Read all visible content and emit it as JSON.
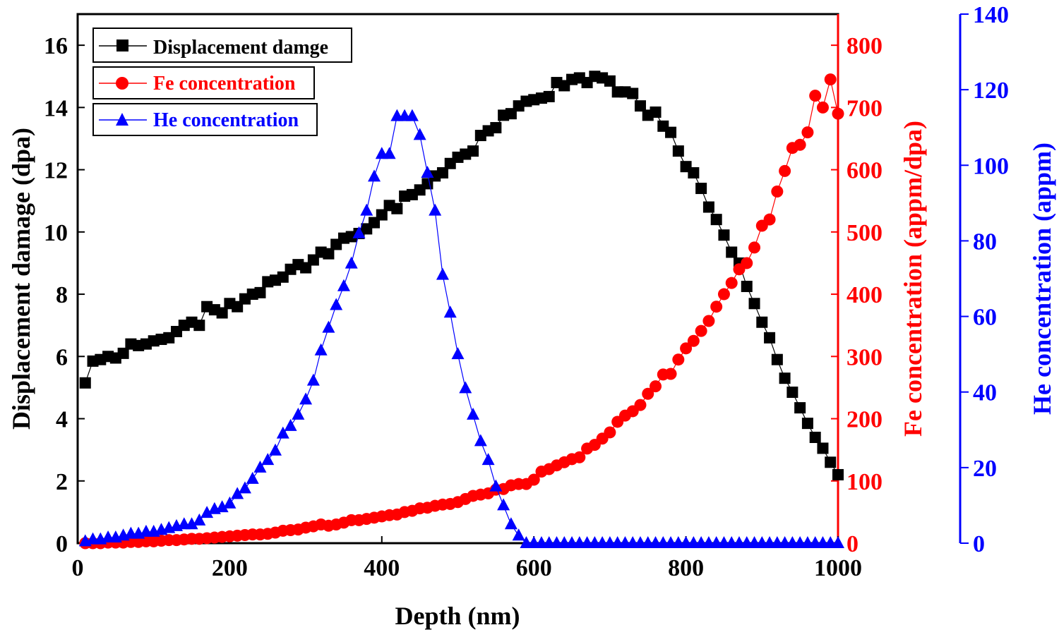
{
  "chart_data": {
    "type": "scatter",
    "xlabel": "Depth (nm)",
    "xlim": [
      0,
      1000
    ],
    "xticks": [
      0,
      200,
      400,
      600,
      800,
      1000
    ],
    "y_axes": [
      {
        "id": "left",
        "label": "Displacement damage (dpa)",
        "ylim": [
          0,
          17
        ],
        "ticks": [
          0,
          2,
          4,
          6,
          8,
          10,
          12,
          14,
          16
        ],
        "color": "#000000"
      },
      {
        "id": "right1",
        "label": "Fe concentration (appm/dpa)",
        "ylim": [
          0,
          850
        ],
        "ticks": [
          0,
          100,
          200,
          300,
          400,
          500,
          600,
          700,
          800
        ],
        "color": "#ff0000"
      },
      {
        "id": "right2",
        "label": "He concentration (appm)",
        "ylim": [
          0,
          140
        ],
        "ticks": [
          0,
          20,
          40,
          60,
          80,
          100,
          120,
          140
        ],
        "color": "#0000ff"
      }
    ],
    "legend": {
      "placement": "top-left",
      "entries": [
        "Displacement damge",
        "Fe concentration",
        "He concentration"
      ]
    },
    "series": [
      {
        "name": "Displacement damge",
        "axis": "left",
        "color": "#000000",
        "marker": "square",
        "x": [
          10,
          20,
          30,
          40,
          50,
          60,
          70,
          80,
          90,
          100,
          110,
          120,
          130,
          140,
          150,
          160,
          170,
          180,
          190,
          200,
          210,
          220,
          230,
          240,
          250,
          260,
          270,
          280,
          290,
          300,
          310,
          320,
          330,
          340,
          350,
          360,
          370,
          380,
          390,
          400,
          410,
          420,
          430,
          440,
          450,
          460,
          470,
          480,
          490,
          500,
          510,
          520,
          530,
          540,
          550,
          560,
          570,
          580,
          590,
          600,
          610,
          620,
          630,
          640,
          650,
          660,
          670,
          680,
          690,
          700,
          710,
          720,
          730,
          740,
          750,
          760,
          770,
          780,
          790,
          800,
          810,
          820,
          830,
          840,
          850,
          860,
          870,
          880,
          890,
          900,
          910,
          920,
          930,
          940,
          950,
          960,
          970,
          980,
          990,
          1000
        ],
        "y": [
          5.15,
          5.85,
          5.9,
          6.0,
          5.95,
          6.1,
          6.4,
          6.35,
          6.4,
          6.5,
          6.55,
          6.6,
          6.8,
          7.0,
          7.1,
          7.0,
          7.6,
          7.5,
          7.4,
          7.7,
          7.6,
          7.85,
          8.0,
          8.05,
          8.4,
          8.45,
          8.55,
          8.8,
          8.95,
          8.85,
          9.1,
          9.35,
          9.3,
          9.6,
          9.8,
          9.85,
          9.95,
          10.1,
          10.3,
          10.55,
          10.85,
          10.75,
          11.15,
          11.2,
          11.35,
          11.55,
          11.8,
          11.9,
          12.2,
          12.4,
          12.5,
          12.6,
          13.1,
          13.25,
          13.35,
          13.75,
          13.8,
          14.05,
          14.2,
          14.25,
          14.3,
          14.35,
          14.8,
          14.7,
          14.9,
          14.95,
          14.8,
          15.0,
          14.95,
          14.85,
          14.5,
          14.5,
          14.45,
          14.05,
          13.75,
          13.85,
          13.4,
          13.2,
          12.6,
          12.1,
          11.9,
          11.4,
          10.8,
          10.4,
          9.9,
          9.35,
          9.0,
          8.25,
          7.7,
          7.1,
          6.6,
          5.9,
          5.3,
          4.85,
          4.35,
          3.85,
          3.4,
          3.05,
          2.6,
          2.2
        ]
      },
      {
        "name": "Fe concentration",
        "axis": "right1",
        "color": "#ff0000",
        "marker": "circle",
        "x": [
          10,
          20,
          30,
          40,
          50,
          60,
          70,
          80,
          90,
          100,
          110,
          120,
          130,
          140,
          150,
          160,
          170,
          180,
          190,
          200,
          210,
          220,
          230,
          240,
          250,
          260,
          270,
          280,
          290,
          300,
          310,
          320,
          330,
          340,
          350,
          360,
          370,
          380,
          390,
          400,
          410,
          420,
          430,
          440,
          450,
          460,
          470,
          480,
          490,
          500,
          510,
          520,
          530,
          540,
          550,
          560,
          570,
          580,
          590,
          600,
          610,
          620,
          630,
          640,
          650,
          660,
          670,
          680,
          690,
          700,
          710,
          720,
          730,
          740,
          750,
          760,
          770,
          780,
          790,
          800,
          810,
          820,
          830,
          840,
          850,
          860,
          870,
          880,
          890,
          900,
          910,
          920,
          930,
          940,
          950,
          960,
          970,
          980,
          990,
          1000
        ],
        "y": [
          0,
          0,
          0,
          1,
          1,
          1,
          2,
          2,
          3,
          3,
          4,
          5,
          5,
          6,
          7,
          7,
          8,
          9,
          10,
          11,
          12,
          13,
          14,
          14,
          15,
          17,
          20,
          21,
          22,
          25,
          27,
          30,
          28,
          30,
          33,
          37,
          37,
          39,
          41,
          43,
          45,
          46,
          50,
          52,
          56,
          57,
          60,
          62,
          63,
          66,
          71,
          76,
          78,
          80,
          86,
          87,
          93,
          95,
          95,
          102,
          115,
          119,
          125,
          130,
          135,
          138,
          152,
          158,
          168,
          178,
          195,
          205,
          212,
          222,
          240,
          252,
          271,
          272,
          295,
          313,
          325,
          341,
          357,
          380,
          400,
          418,
          440,
          450,
          475,
          510,
          520,
          565,
          598,
          635,
          640,
          660,
          719,
          700,
          745,
          690
        ]
      },
      {
        "name": "He concentration",
        "axis": "right2",
        "color": "#0000ff",
        "marker": "triangle",
        "x": [
          10,
          20,
          30,
          40,
          50,
          60,
          70,
          80,
          90,
          100,
          110,
          120,
          130,
          140,
          150,
          160,
          170,
          180,
          190,
          200,
          210,
          220,
          230,
          240,
          250,
          260,
          270,
          280,
          290,
          300,
          310,
          320,
          330,
          340,
          350,
          360,
          370,
          380,
          390,
          400,
          410,
          420,
          430,
          440,
          450,
          460,
          470,
          480,
          490,
          500,
          510,
          520,
          530,
          540,
          550,
          560,
          570,
          580,
          590,
          600,
          610,
          620,
          630,
          640,
          650,
          660,
          670,
          680,
          690,
          700,
          710,
          720,
          730,
          740,
          750,
          760,
          770,
          780,
          790,
          800,
          810,
          820,
          830,
          840,
          850,
          860,
          870,
          880,
          890,
          900,
          910,
          920,
          930,
          940,
          950,
          960,
          970,
          980,
          990,
          1000
        ],
        "y": [
          0.5,
          1,
          1,
          1.5,
          1.5,
          2,
          2.5,
          2.5,
          3,
          3,
          3.5,
          4,
          4.5,
          5,
          5,
          6,
          8,
          9,
          9.5,
          10.5,
          13,
          14.5,
          17,
          20,
          22,
          24.5,
          29,
          31,
          34,
          38,
          43,
          51,
          57,
          63,
          68,
          74,
          82,
          88,
          97,
          103,
          103,
          113,
          113,
          113,
          108,
          98,
          88,
          71,
          61,
          50,
          41,
          34,
          27,
          22,
          15,
          10,
          5,
          2,
          0,
          0,
          0,
          0,
          0,
          0,
          0,
          0,
          0,
          0,
          0,
          0,
          0,
          0,
          0,
          0,
          0,
          0,
          0,
          0,
          0,
          0,
          0,
          0,
          0,
          0,
          0,
          0,
          0,
          0,
          0,
          0,
          0,
          0,
          0,
          0,
          0,
          0,
          0,
          0,
          0,
          0
        ]
      }
    ]
  }
}
